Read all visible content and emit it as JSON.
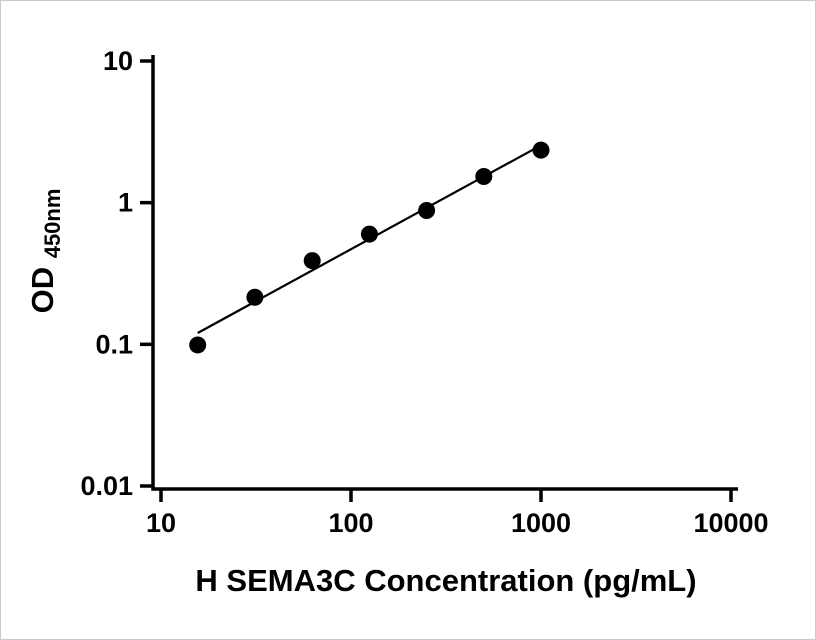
{
  "chart_data": {
    "type": "scatter",
    "title": "",
    "xlabel": "H SEMA3C Concentration (pg/mL)",
    "ylabel_main": "OD",
    "ylabel_sub": "450nm",
    "x_scale": "log",
    "y_scale": "log",
    "xlim": [
      10,
      10000
    ],
    "ylim": [
      0.01,
      10
    ],
    "grid": false,
    "legend": "none",
    "x_ticks": {
      "values": [
        10,
        100,
        1000,
        10000
      ],
      "labels": [
        "10",
        "100",
        "1000",
        "10000"
      ]
    },
    "y_ticks": {
      "values": [
        0.01,
        0.1,
        1,
        10
      ],
      "labels": [
        "0.01",
        "0.1",
        "1",
        "10"
      ]
    },
    "series": [
      {
        "marker": "filled-circle",
        "marker_color": "#000000",
        "x": [
          15.6,
          31.2,
          62.5,
          125,
          250,
          500,
          1000
        ],
        "y": [
          0.099,
          0.215,
          0.39,
          0.6,
          0.88,
          1.53,
          2.35
        ]
      }
    ],
    "trendline": {
      "type": "linear-fit-on-log-log",
      "color": "#000000",
      "span": "data-range"
    }
  },
  "colors": {
    "axis": "#000000",
    "marker": "#000000",
    "background": "#ffffff",
    "frame_border": "#c9c9c9"
  }
}
